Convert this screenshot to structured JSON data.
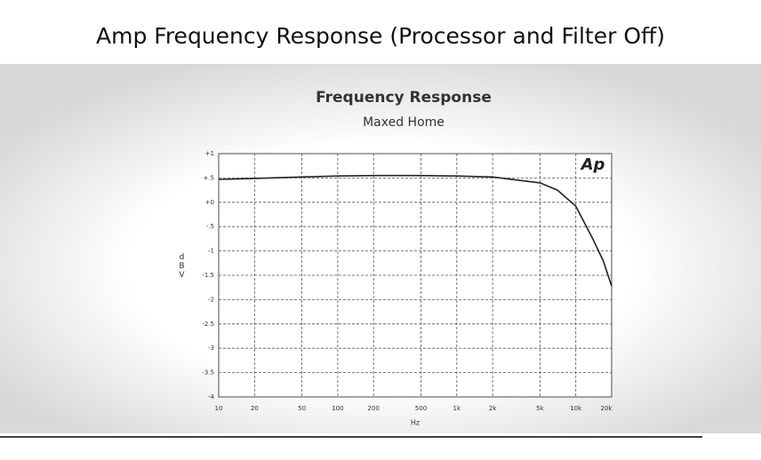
{
  "page_title": "Amp Frequency Response (Processor and Filter Off)",
  "chart_data": {
    "type": "line",
    "title": "Frequency Response",
    "subtitle": "Maxed Home",
    "x_label": "Hz",
    "y_label": "dBV",
    "logo": "Ap",
    "x": [
      10,
      20,
      50,
      100,
      200,
      500,
      1000,
      2000,
      5000,
      7000,
      10000,
      14000,
      17000,
      20000
    ],
    "series": [
      {
        "name": "Maxed Home",
        "color": "#222222",
        "values": [
          0.47,
          0.49,
          0.52,
          0.54,
          0.55,
          0.55,
          0.54,
          0.52,
          0.4,
          0.25,
          -0.08,
          -0.77,
          -1.2,
          -1.72
        ]
      }
    ],
    "xlim": [
      10,
      20000
    ],
    "x_log": true,
    "xticks": [
      10,
      20,
      50,
      100,
      200,
      500,
      {
        "value": 1000,
        "label": "1k"
      },
      {
        "value": 2000,
        "label": "2k"
      },
      {
        "value": 5000,
        "label": "5k"
      },
      {
        "value": 10000,
        "label": "10k"
      },
      {
        "value": 20000,
        "label": "20k"
      }
    ],
    "ylim": [
      -4,
      1
    ],
    "yticks": [
      {
        "value": 1,
        "label": "+1"
      },
      {
        "value": 0.5,
        "label": "+.5"
      },
      {
        "value": 0,
        "label": "+0"
      },
      {
        "value": -0.5,
        "label": "-.5"
      },
      -1,
      -1.5,
      -2,
      -2.5,
      -3,
      -3.5,
      -4
    ],
    "grid": true
  }
}
